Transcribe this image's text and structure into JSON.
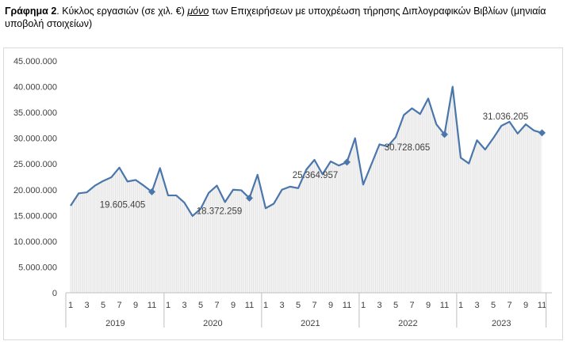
{
  "caption": {
    "lead": "Γράφημα 2",
    "part1": ". Κύκλος εργασιών (σε χιλ. €) ",
    "emphasis": "μόνο",
    "part2": " των Επιχειρήσεων με υποχρέωση τήρησης Διπλογραφικών Βιβλίων (μηνιαία υποβολή στοιχείων)"
  },
  "chart_data": {
    "type": "area",
    "title": "",
    "xlabel": "",
    "ylabel": "",
    "ylim": [
      0,
      45000000
    ],
    "y_ticks": [
      "0",
      "5.000.000",
      "10.000.000",
      "15.000.000",
      "20.000.000",
      "25.000.000",
      "30.000.000",
      "35.000.000",
      "40.000.000",
      "45.000.000"
    ],
    "grid": false,
    "legend": "none",
    "line_color": "#4a76ac",
    "fill_color": "#e0e0e0",
    "years": [
      "2019",
      "2020",
      "2021",
      "2022",
      "2023"
    ],
    "month_ticks": [
      "1",
      "3",
      "5",
      "7",
      "9",
      "11"
    ],
    "series": [
      {
        "values": [
          16900000,
          19300000,
          19500000,
          20800000,
          21700000,
          22400000,
          24300000,
          21600000,
          21900000,
          20800000,
          19605405,
          24200000,
          18900000,
          18900000,
          17500000,
          14900000,
          16300000,
          19400000,
          20800000,
          17600000,
          20000000,
          19900000,
          18372259,
          22900000,
          16400000,
          17300000,
          20000000,
          20600000,
          20300000,
          23900000,
          25800000,
          23000000,
          25500000,
          24700000,
          25364957,
          30000000,
          21000000,
          24900000,
          28800000,
          28400000,
          30200000,
          34500000,
          35800000,
          34700000,
          37700000,
          32700000,
          30728065,
          40000000,
          26200000,
          25100000,
          29600000,
          27800000,
          30000000,
          32400000,
          33200000,
          30900000,
          32700000,
          31500000,
          31036205
        ]
      }
    ],
    "annotations": [
      {
        "index": 10,
        "label": "19.605.405"
      },
      {
        "index": 22,
        "label": "18.372.259"
      },
      {
        "index": 34,
        "label": "25.364.957"
      },
      {
        "index": 46,
        "label": "30.728.065"
      },
      {
        "index": 58,
        "label": "31.036.205"
      }
    ]
  }
}
